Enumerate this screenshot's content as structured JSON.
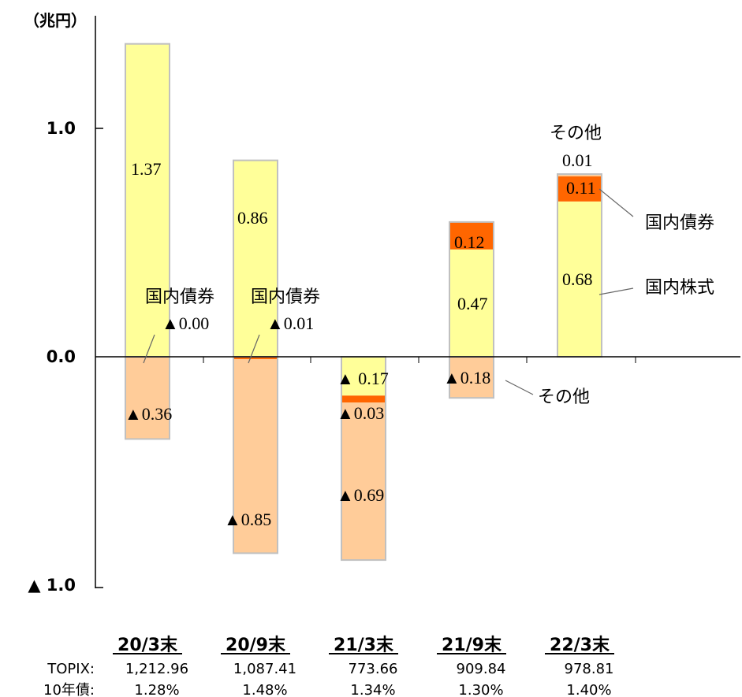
{
  "chart_data": {
    "type": "bar",
    "stacked": true,
    "unit": "（兆円）",
    "y_ticks": [
      {
        "value": 1.0,
        "label": "1.0"
      },
      {
        "value": 0.0,
        "label": "0.0"
      },
      {
        "value": -1.0,
        "label": "▲ 1.0"
      }
    ],
    "ylim": [
      -1.0,
      1.0
    ],
    "categories": [
      "20/3末",
      "20/9末",
      "21/3末",
      "21/9末",
      "22/3末"
    ],
    "series": [
      {
        "name": "国内株式",
        "color": "#ffff99",
        "values": [
          1.37,
          0.86,
          -0.17,
          0.47,
          0.68
        ]
      },
      {
        "name": "国内債券",
        "color": "#ff6600",
        "values": [
          0.0,
          -0.01,
          -0.03,
          0.12,
          0.11
        ]
      },
      {
        "name": "その他",
        "color": "#ffcc99",
        "values": [
          -0.36,
          -0.85,
          -0.69,
          -0.18,
          0.01
        ]
      }
    ],
    "data_labels": [
      [
        "1.37",
        "▲0.00",
        "▲0.36"
      ],
      [
        "0.86",
        "▲0.01",
        "▲0.85"
      ],
      [
        "▲ 0.17",
        "▲0.03",
        "▲0.69"
      ],
      [
        "0.47",
        "0.12",
        "▲0.18"
      ],
      [
        "0.68",
        "0.11",
        "0.01"
      ]
    ],
    "annotations": [
      {
        "category": 0,
        "series": "国内債券",
        "text": "国内債券"
      },
      {
        "category": 1,
        "series": "国内債券",
        "text": "国内債券"
      },
      {
        "category": 3,
        "series": "その他",
        "text": "その他"
      },
      {
        "category": 4,
        "series": "国内債券",
        "text": "国内債券"
      },
      {
        "category": 4,
        "series": "国内株式",
        "text": "国内株式"
      },
      {
        "category": 4,
        "series": "その他",
        "text": "その他"
      }
    ],
    "table": {
      "rows": [
        {
          "label": "TOPIX:",
          "values": [
            "1,212.96",
            "1,087.41",
            "773.66",
            "909.84",
            "978.81"
          ]
        },
        {
          "label": "10年債:",
          "values": [
            "1.28%",
            "1.48%",
            "1.34%",
            "1.30%",
            "1.40%"
          ]
        }
      ]
    }
  }
}
